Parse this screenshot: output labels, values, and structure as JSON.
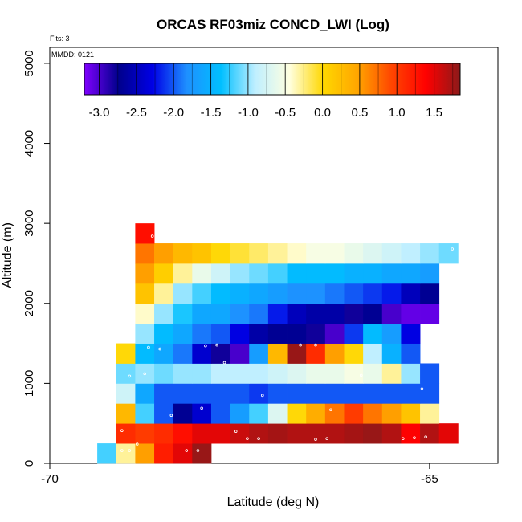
{
  "chart_data": {
    "type": "heatmap",
    "title": "ORCAS RF03miz CONCD_LWI (Log)",
    "xlabel": "Latitude (deg N)",
    "ylabel": "Altitude (m)",
    "annotation_flts": "Flts: 3",
    "annotation_mmdd": "MMDD: 0121",
    "xlim": [
      -70,
      -64.1
    ],
    "ylim": [
      0,
      5200
    ],
    "x_ticks": [
      -70,
      -65
    ],
    "x_tick_labels": [
      "-70",
      "-65"
    ],
    "y_ticks": [
      0,
      1000,
      2000,
      3000,
      4000,
      5000
    ],
    "y_tick_labels": [
      "0",
      "1000",
      "2000",
      "3000",
      "4000",
      "5000"
    ],
    "cell_width_deg": 0.25,
    "cell_height_m": 250,
    "colorbar": {
      "min": -3.2,
      "max": 1.85,
      "ticks": [
        -3.0,
        -2.5,
        -2.0,
        -1.5,
        -1.0,
        -0.5,
        0.0,
        0.5,
        1.0,
        1.5
      ],
      "tick_labels": [
        "-3.0",
        "-2.5",
        "-2.0",
        "-1.5",
        "-1.0",
        "-0.5",
        "0.0",
        "0.5",
        "1.0",
        "1.5"
      ],
      "stops": [
        "#7f00ff",
        "#00008b",
        "#0000e6",
        "#1e90ff",
        "#00bfff",
        "#bfefff",
        "#ffffe0",
        "#ffd700",
        "#ffa500",
        "#ff4500",
        "#ff0000",
        "#8b1a1a"
      ]
    },
    "cells": [
      {
        "lat": -69.25,
        "alt": 125,
        "v": -1.2
      },
      {
        "lat": -69.0,
        "alt": 125,
        "v": -0.3
      },
      {
        "lat": -68.75,
        "alt": 125,
        "v": 0.5
      },
      {
        "lat": -68.5,
        "alt": 125,
        "v": 1.2
      },
      {
        "lat": -68.25,
        "alt": 125,
        "v": 1.5
      },
      {
        "lat": -68.0,
        "alt": 125,
        "v": 1.8
      },
      {
        "lat": -69.0,
        "alt": 375,
        "v": 1.1
      },
      {
        "lat": -68.75,
        "alt": 375,
        "v": 1.0
      },
      {
        "lat": -68.5,
        "alt": 375,
        "v": 1.1
      },
      {
        "lat": -68.25,
        "alt": 375,
        "v": 1.3
      },
      {
        "lat": -68.0,
        "alt": 375,
        "v": 1.5
      },
      {
        "lat": -67.75,
        "alt": 375,
        "v": 1.5
      },
      {
        "lat": -67.5,
        "alt": 375,
        "v": 1.6
      },
      {
        "lat": -67.25,
        "alt": 375,
        "v": 1.7
      },
      {
        "lat": -67.0,
        "alt": 375,
        "v": 1.75
      },
      {
        "lat": -66.75,
        "alt": 375,
        "v": 1.7
      },
      {
        "lat": -66.5,
        "alt": 375,
        "v": 1.7
      },
      {
        "lat": -66.25,
        "alt": 375,
        "v": 1.7
      },
      {
        "lat": -66.0,
        "alt": 375,
        "v": 1.75
      },
      {
        "lat": -65.75,
        "alt": 375,
        "v": 1.8
      },
      {
        "lat": -65.5,
        "alt": 375,
        "v": 1.7
      },
      {
        "lat": -65.25,
        "alt": 375,
        "v": 1.4
      },
      {
        "lat": -65.0,
        "alt": 375,
        "v": 1.7
      },
      {
        "lat": -64.75,
        "alt": 375,
        "v": 1.5
      },
      {
        "lat": -69.0,
        "alt": 625,
        "v": 0.3
      },
      {
        "lat": -68.75,
        "alt": 625,
        "v": -1.2
      },
      {
        "lat": -68.5,
        "alt": 625,
        "v": -2.0
      },
      {
        "lat": -68.25,
        "alt": 625,
        "v": -2.7
      },
      {
        "lat": -68.0,
        "alt": 625,
        "v": -2.4
      },
      {
        "lat": -67.75,
        "alt": 625,
        "v": -2.0
      },
      {
        "lat": -67.5,
        "alt": 625,
        "v": -1.7
      },
      {
        "lat": -67.25,
        "alt": 625,
        "v": -1.2
      },
      {
        "lat": -67.0,
        "alt": 625,
        "v": -0.7
      },
      {
        "lat": -66.75,
        "alt": 625,
        "v": 0.0
      },
      {
        "lat": -66.5,
        "alt": 625,
        "v": 0.4
      },
      {
        "lat": -66.25,
        "alt": 625,
        "v": 0.7
      },
      {
        "lat": -66.0,
        "alt": 625,
        "v": 1.0
      },
      {
        "lat": -65.75,
        "alt": 625,
        "v": 0.7
      },
      {
        "lat": -65.5,
        "alt": 625,
        "v": 0.5
      },
      {
        "lat": -65.25,
        "alt": 625,
        "v": 0.2
      },
      {
        "lat": -65.0,
        "alt": 625,
        "v": -0.3
      },
      {
        "lat": -69.0,
        "alt": 875,
        "v": -0.8
      },
      {
        "lat": -68.75,
        "alt": 875,
        "v": -1.6
      },
      {
        "lat": -68.5,
        "alt": 875,
        "v": -2.0
      },
      {
        "lat": -68.25,
        "alt": 875,
        "v": -2.0
      },
      {
        "lat": -68.0,
        "alt": 875,
        "v": -2.0
      },
      {
        "lat": -67.75,
        "alt": 875,
        "v": -2.0
      },
      {
        "lat": -67.5,
        "alt": 875,
        "v": -2.0
      },
      {
        "lat": -67.25,
        "alt": 875,
        "v": -2.1
      },
      {
        "lat": -67.0,
        "alt": 875,
        "v": -2.0
      },
      {
        "lat": -66.75,
        "alt": 875,
        "v": -2.0
      },
      {
        "lat": -66.5,
        "alt": 875,
        "v": -2.0
      },
      {
        "lat": -66.25,
        "alt": 875,
        "v": -2.0
      },
      {
        "lat": -66.0,
        "alt": 875,
        "v": -2.0
      },
      {
        "lat": -65.75,
        "alt": 875,
        "v": -2.0
      },
      {
        "lat": -65.5,
        "alt": 875,
        "v": -2.0
      },
      {
        "lat": -65.25,
        "alt": 875,
        "v": -2.0
      },
      {
        "lat": -65.0,
        "alt": 875,
        "v": -2.0
      },
      {
        "lat": -69.0,
        "alt": 1125,
        "v": -1.1
      },
      {
        "lat": -68.75,
        "alt": 1125,
        "v": -1.0
      },
      {
        "lat": -68.5,
        "alt": 1125,
        "v": -1.1
      },
      {
        "lat": -68.25,
        "alt": 1125,
        "v": -1.0
      },
      {
        "lat": -68.0,
        "alt": 1125,
        "v": -1.0
      },
      {
        "lat": -67.75,
        "alt": 1125,
        "v": -0.9
      },
      {
        "lat": -67.5,
        "alt": 1125,
        "v": -0.9
      },
      {
        "lat": -67.25,
        "alt": 1125,
        "v": -0.9
      },
      {
        "lat": -67.0,
        "alt": 1125,
        "v": -0.8
      },
      {
        "lat": -66.75,
        "alt": 1125,
        "v": -0.7
      },
      {
        "lat": -66.5,
        "alt": 1125,
        "v": -0.6
      },
      {
        "lat": -66.25,
        "alt": 1125,
        "v": -0.6
      },
      {
        "lat": -66.0,
        "alt": 1125,
        "v": -0.5
      },
      {
        "lat": -65.75,
        "alt": 1125,
        "v": -0.6
      },
      {
        "lat": -65.5,
        "alt": 1125,
        "v": -0.3
      },
      {
        "lat": -65.25,
        "alt": 1125,
        "v": -1.0
      },
      {
        "lat": -65.0,
        "alt": 1125,
        "v": -2.0
      },
      {
        "lat": -69.0,
        "alt": 1375,
        "v": 0.0
      },
      {
        "lat": -68.75,
        "alt": 1375,
        "v": -1.4
      },
      {
        "lat": -68.5,
        "alt": 1375,
        "v": -1.6
      },
      {
        "lat": -68.25,
        "alt": 1375,
        "v": -1.9
      },
      {
        "lat": -68.0,
        "alt": 1375,
        "v": -2.4
      },
      {
        "lat": -67.75,
        "alt": 1375,
        "v": -2.8
      },
      {
        "lat": -67.5,
        "alt": 1375,
        "v": -3.0
      },
      {
        "lat": -67.25,
        "alt": 1375,
        "v": -1.7
      },
      {
        "lat": -67.0,
        "alt": 1375,
        "v": 0.3
      },
      {
        "lat": -66.75,
        "alt": 1375,
        "v": 1.8
      },
      {
        "lat": -66.5,
        "alt": 1375,
        "v": 1.1
      },
      {
        "lat": -66.25,
        "alt": 1375,
        "v": 0.5
      },
      {
        "lat": -66.0,
        "alt": 1375,
        "v": 0.0
      },
      {
        "lat": -65.75,
        "alt": 1375,
        "v": -0.9
      },
      {
        "lat": -65.5,
        "alt": 1375,
        "v": -1.5
      },
      {
        "lat": -65.25,
        "alt": 1375,
        "v": -2.0
      },
      {
        "lat": -68.75,
        "alt": 1625,
        "v": -1.0
      },
      {
        "lat": -68.5,
        "alt": 1625,
        "v": -1.4
      },
      {
        "lat": -68.25,
        "alt": 1625,
        "v": -1.6
      },
      {
        "lat": -68.0,
        "alt": 1625,
        "v": -1.9
      },
      {
        "lat": -67.75,
        "alt": 1625,
        "v": -2.0
      },
      {
        "lat": -67.5,
        "alt": 1625,
        "v": -2.3
      },
      {
        "lat": -67.25,
        "alt": 1625,
        "v": -2.6
      },
      {
        "lat": -67.0,
        "alt": 1625,
        "v": -2.7
      },
      {
        "lat": -66.75,
        "alt": 1625,
        "v": -2.7
      },
      {
        "lat": -66.5,
        "alt": 1625,
        "v": -2.8
      },
      {
        "lat": -66.25,
        "alt": 1625,
        "v": -3.0
      },
      {
        "lat": -66.0,
        "alt": 1625,
        "v": -2.1
      },
      {
        "lat": -65.75,
        "alt": 1625,
        "v": -1.4
      },
      {
        "lat": -65.5,
        "alt": 1625,
        "v": -1.7
      },
      {
        "lat": -65.25,
        "alt": 1625,
        "v": -2.3
      },
      {
        "lat": -68.75,
        "alt": 1875,
        "v": -0.4
      },
      {
        "lat": -68.5,
        "alt": 1875,
        "v": -1.0
      },
      {
        "lat": -68.25,
        "alt": 1875,
        "v": -1.3
      },
      {
        "lat": -68.0,
        "alt": 1875,
        "v": -1.6
      },
      {
        "lat": -67.75,
        "alt": 1875,
        "v": -1.6
      },
      {
        "lat": -67.5,
        "alt": 1875,
        "v": -1.8
      },
      {
        "lat": -67.25,
        "alt": 1875,
        "v": -1.9
      },
      {
        "lat": -67.0,
        "alt": 1875,
        "v": -2.2
      },
      {
        "lat": -66.75,
        "alt": 1875,
        "v": -2.5
      },
      {
        "lat": -66.5,
        "alt": 1875,
        "v": -2.6
      },
      {
        "lat": -66.25,
        "alt": 1875,
        "v": -2.6
      },
      {
        "lat": -66.0,
        "alt": 1875,
        "v": -2.8
      },
      {
        "lat": -65.75,
        "alt": 1875,
        "v": -2.7
      },
      {
        "lat": -65.5,
        "alt": 1875,
        "v": -3.0
      },
      {
        "lat": -65.25,
        "alt": 1875,
        "v": -3.1
      },
      {
        "lat": -65.0,
        "alt": 1875,
        "v": -3.1
      },
      {
        "lat": -68.75,
        "alt": 2125,
        "v": 0.2
      },
      {
        "lat": -68.5,
        "alt": 2125,
        "v": -0.3
      },
      {
        "lat": -68.25,
        "alt": 2125,
        "v": -1.0
      },
      {
        "lat": -68.0,
        "alt": 2125,
        "v": -1.2
      },
      {
        "lat": -67.75,
        "alt": 2125,
        "v": -1.4
      },
      {
        "lat": -67.5,
        "alt": 2125,
        "v": -1.5
      },
      {
        "lat": -67.25,
        "alt": 2125,
        "v": -1.6
      },
      {
        "lat": -67.0,
        "alt": 2125,
        "v": -1.7
      },
      {
        "lat": -66.75,
        "alt": 2125,
        "v": -1.8
      },
      {
        "lat": -66.5,
        "alt": 2125,
        "v": -1.8
      },
      {
        "lat": -66.25,
        "alt": 2125,
        "v": -1.9
      },
      {
        "lat": -66.0,
        "alt": 2125,
        "v": -2.0
      },
      {
        "lat": -65.75,
        "alt": 2125,
        "v": -2.1
      },
      {
        "lat": -65.5,
        "alt": 2125,
        "v": -2.2
      },
      {
        "lat": -65.25,
        "alt": 2125,
        "v": -2.5
      },
      {
        "lat": -65.0,
        "alt": 2125,
        "v": -2.7
      },
      {
        "lat": -68.75,
        "alt": 2375,
        "v": 0.5
      },
      {
        "lat": -68.5,
        "alt": 2375,
        "v": 0.1
      },
      {
        "lat": -68.25,
        "alt": 2375,
        "v": -0.3
      },
      {
        "lat": -68.0,
        "alt": 2375,
        "v": -0.6
      },
      {
        "lat": -67.75,
        "alt": 2375,
        "v": -0.8
      },
      {
        "lat": -67.5,
        "alt": 2375,
        "v": -1.0
      },
      {
        "lat": -67.25,
        "alt": 2375,
        "v": -1.1
      },
      {
        "lat": -67.0,
        "alt": 2375,
        "v": -1.2
      },
      {
        "lat": -66.75,
        "alt": 2375,
        "v": -1.4
      },
      {
        "lat": -66.5,
        "alt": 2375,
        "v": -1.4
      },
      {
        "lat": -66.25,
        "alt": 2375,
        "v": -1.4
      },
      {
        "lat": -66.0,
        "alt": 2375,
        "v": -1.5
      },
      {
        "lat": -65.75,
        "alt": 2375,
        "v": -1.5
      },
      {
        "lat": -65.5,
        "alt": 2375,
        "v": -1.6
      },
      {
        "lat": -65.25,
        "alt": 2375,
        "v": -1.6
      },
      {
        "lat": -65.0,
        "alt": 2375,
        "v": -1.7
      },
      {
        "lat": -68.75,
        "alt": 2625,
        "v": 0.7
      },
      {
        "lat": -68.5,
        "alt": 2625,
        "v": 0.5
      },
      {
        "lat": -68.25,
        "alt": 2625,
        "v": 0.3
      },
      {
        "lat": -68.0,
        "alt": 2625,
        "v": 0.2
      },
      {
        "lat": -67.75,
        "alt": 2625,
        "v": 0.0
      },
      {
        "lat": -67.5,
        "alt": 2625,
        "v": -0.1
      },
      {
        "lat": -67.25,
        "alt": 2625,
        "v": -0.2
      },
      {
        "lat": -67.0,
        "alt": 2625,
        "v": -0.3
      },
      {
        "lat": -66.75,
        "alt": 2625,
        "v": -0.4
      },
      {
        "lat": -66.5,
        "alt": 2625,
        "v": -0.5
      },
      {
        "lat": -66.25,
        "alt": 2625,
        "v": -0.5
      },
      {
        "lat": -66.0,
        "alt": 2625,
        "v": -0.6
      },
      {
        "lat": -65.75,
        "alt": 2625,
        "v": -0.7
      },
      {
        "lat": -65.5,
        "alt": 2625,
        "v": -0.8
      },
      {
        "lat": -65.25,
        "alt": 2625,
        "v": -0.9
      },
      {
        "lat": -65.0,
        "alt": 2625,
        "v": -1.0
      },
      {
        "lat": -64.75,
        "alt": 2625,
        "v": -1.1
      },
      {
        "lat": -68.75,
        "alt": 2875,
        "v": 1.3
      }
    ],
    "markers": [
      {
        "lat": -69.05,
        "alt": 160
      },
      {
        "lat": -68.95,
        "alt": 160
      },
      {
        "lat": -68.85,
        "alt": 240
      },
      {
        "lat": -68.2,
        "alt": 160
      },
      {
        "lat": -68.05,
        "alt": 160
      },
      {
        "lat": -69.05,
        "alt": 410
      },
      {
        "lat": -67.55,
        "alt": 400
      },
      {
        "lat": -67.4,
        "alt": 310
      },
      {
        "lat": -67.25,
        "alt": 310
      },
      {
        "lat": -66.5,
        "alt": 300
      },
      {
        "lat": -66.35,
        "alt": 310
      },
      {
        "lat": -65.35,
        "alt": 310
      },
      {
        "lat": -65.2,
        "alt": 320
      },
      {
        "lat": -65.05,
        "alt": 330
      },
      {
        "lat": -68.4,
        "alt": 600
      },
      {
        "lat": -68.0,
        "alt": 690
      },
      {
        "lat": -66.3,
        "alt": 670
      },
      {
        "lat": -67.2,
        "alt": 850
      },
      {
        "lat": -65.1,
        "alt": 930
      },
      {
        "lat": -68.95,
        "alt": 1090
      },
      {
        "lat": -68.75,
        "alt": 1120
      },
      {
        "lat": -65.9,
        "alt": 1100
      },
      {
        "lat": -68.7,
        "alt": 1450
      },
      {
        "lat": -68.55,
        "alt": 1430
      },
      {
        "lat": -67.95,
        "alt": 1470
      },
      {
        "lat": -67.8,
        "alt": 1480
      },
      {
        "lat": -66.7,
        "alt": 1480
      },
      {
        "lat": -66.5,
        "alt": 1480
      },
      {
        "lat": -67.7,
        "alt": 1260
      },
      {
        "lat": -64.85,
        "alt": 1800
      },
      {
        "lat": -64.7,
        "alt": 2680
      },
      {
        "lat": -68.65,
        "alt": 2840
      }
    ]
  }
}
